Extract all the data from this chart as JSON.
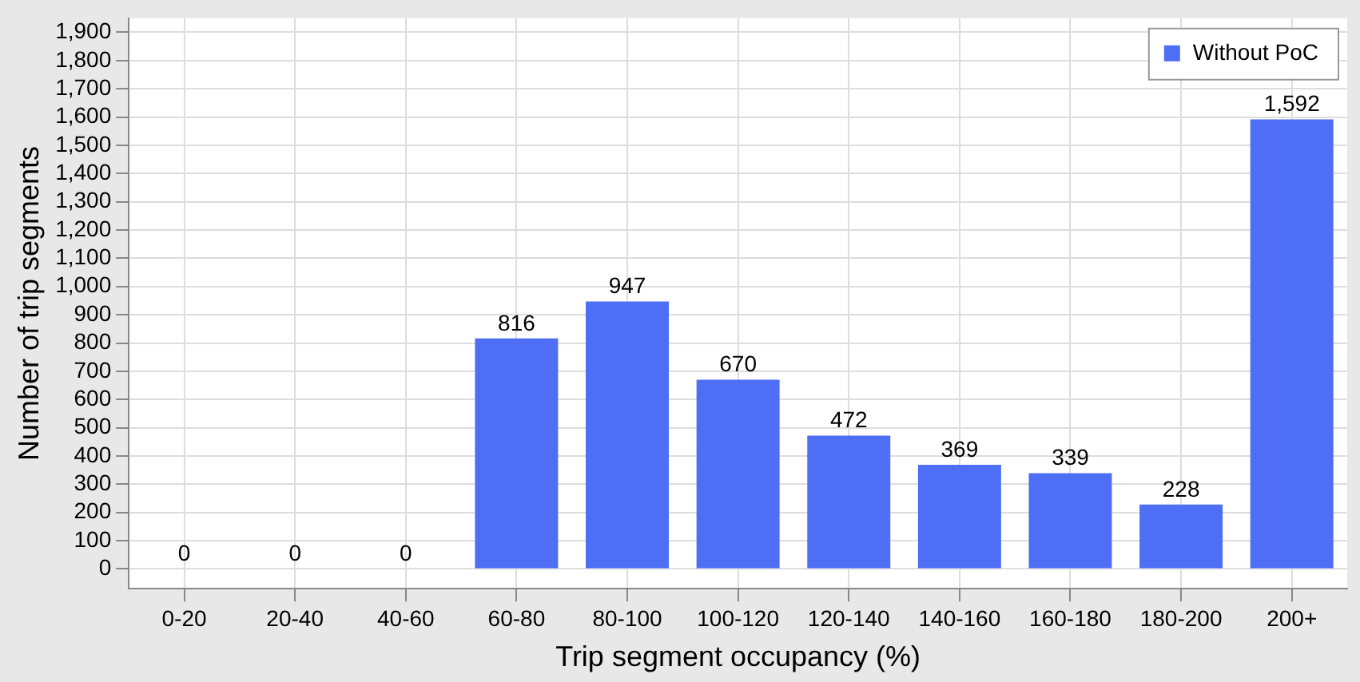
{
  "chart_data": {
    "type": "bar",
    "xlabel": "Trip segment occupancy (%)",
    "ylabel": "Number of trip segments",
    "categories": [
      "0-20",
      "20-40",
      "40-60",
      "60-80",
      "80-100",
      "100-120",
      "120-140",
      "140-160",
      "160-180",
      "180-200",
      "200+"
    ],
    "series": [
      {
        "name": "Without PoC",
        "color": "#4d6ef5",
        "values": [
          0,
          0,
          0,
          816,
          947,
          670,
          472,
          369,
          339,
          228,
          1592
        ],
        "value_labels": [
          "0",
          "0",
          "0",
          "816",
          "947",
          "670",
          "472",
          "369",
          "339",
          "228",
          "1,592"
        ]
      }
    ],
    "ylim": [
      -70,
      1950
    ],
    "yticks": [
      0,
      100,
      200,
      300,
      400,
      500,
      600,
      700,
      800,
      900,
      {
        "value": 1000,
        "label": "1,000"
      },
      {
        "value": 1100,
        "label": "1,100"
      },
      {
        "value": 1200,
        "label": "1,200"
      },
      {
        "value": 1300,
        "label": "1,300"
      },
      {
        "value": 1400,
        "label": "1,400"
      },
      {
        "value": 1500,
        "label": "1,500"
      },
      {
        "value": 1600,
        "label": "1,600"
      },
      {
        "value": 1700,
        "label": "1,700"
      },
      {
        "value": 1800,
        "label": "1,800"
      },
      {
        "value": 1900,
        "label": "1,900"
      }
    ],
    "grid": true,
    "legend": "top right"
  }
}
